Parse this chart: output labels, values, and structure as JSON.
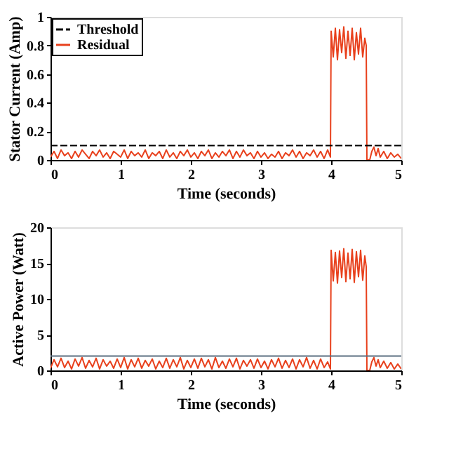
{
  "chart_data": [
    {
      "type": "line",
      "xlabel": "Time (seconds)",
      "ylabel": "Stator Current (Amp)",
      "xlim": [
        0,
        5
      ],
      "ylim": [
        0,
        1
      ],
      "xticks": [
        0,
        1,
        2,
        3,
        4,
        5
      ],
      "yticks": [
        0,
        0.2,
        0.4,
        0.6,
        0.8,
        1
      ],
      "grid": false,
      "legend": "top left",
      "line_style": "solid",
      "marker": "none",
      "ref_lines": [
        {
          "axis": "y",
          "value": 0.1,
          "label": "Threshold",
          "color": "#000000",
          "line_style": "dashed"
        }
      ],
      "series": [
        {
          "name": "Residual",
          "color": "#e8401c",
          "x": [
            0,
            0.05,
            0.1,
            0.15,
            0.2,
            0.25,
            0.3,
            0.35,
            0.4,
            0.45,
            0.5,
            0.55,
            0.6,
            0.65,
            0.7,
            0.75,
            0.8,
            0.85,
            0.9,
            0.95,
            1,
            1.05,
            1.1,
            1.15,
            1.2,
            1.25,
            1.3,
            1.35,
            1.4,
            1.45,
            1.5,
            1.55,
            1.6,
            1.65,
            1.7,
            1.75,
            1.8,
            1.85,
            1.9,
            1.95,
            2,
            2.05,
            2.1,
            2.15,
            2.2,
            2.25,
            2.3,
            2.35,
            2.4,
            2.45,
            2.5,
            2.55,
            2.6,
            2.65,
            2.7,
            2.75,
            2.8,
            2.85,
            2.9,
            2.95,
            3,
            3.05,
            3.1,
            3.15,
            3.2,
            3.25,
            3.3,
            3.35,
            3.4,
            3.45,
            3.5,
            3.55,
            3.6,
            3.65,
            3.7,
            3.75,
            3.8,
            3.85,
            3.9,
            3.95,
            3.99,
            4,
            4.03,
            4.06,
            4.09,
            4.12,
            4.15,
            4.18,
            4.21,
            4.24,
            4.27,
            4.3,
            4.33,
            4.36,
            4.39,
            4.42,
            4.45,
            4.48,
            4.5,
            4.51,
            4.55,
            4.58,
            4.61,
            4.64,
            4.67,
            4.7,
            4.75,
            4.8,
            4.85,
            4.9,
            4.95,
            5
          ],
          "values": [
            0.02,
            0.06,
            0.01,
            0.07,
            0.03,
            0.05,
            0.01,
            0.06,
            0.02,
            0.07,
            0.04,
            0.01,
            0.06,
            0.03,
            0.07,
            0.02,
            0.05,
            0.01,
            0.06,
            0.04,
            0.02,
            0.07,
            0.01,
            0.06,
            0.03,
            0.05,
            0.02,
            0.07,
            0.01,
            0.05,
            0.03,
            0.06,
            0.01,
            0.07,
            0.02,
            0.05,
            0.01,
            0.06,
            0.03,
            0.07,
            0.02,
            0.05,
            0.01,
            0.06,
            0.03,
            0.07,
            0.01,
            0.05,
            0.02,
            0.06,
            0.03,
            0.07,
            0.01,
            0.06,
            0.02,
            0.07,
            0.03,
            0.05,
            0.01,
            0.06,
            0.02,
            0.05,
            0.01,
            0.04,
            0.02,
            0.06,
            0.01,
            0.05,
            0.03,
            0.07,
            0.02,
            0.06,
            0.01,
            0.05,
            0.03,
            0.07,
            0.02,
            0.06,
            0.01,
            0.07,
            0.02,
            0.9,
            0.72,
            0.92,
            0.7,
            0.91,
            0.75,
            0.93,
            0.71,
            0.9,
            0.73,
            0.92,
            0.7,
            0.89,
            0.74,
            0.92,
            0.72,
            0.85,
            0.8,
            0,
            0,
            0.06,
            0.09,
            0.03,
            0.08,
            0.02,
            0.06,
            0.01,
            0.05,
            0.02,
            0.04,
            0.01
          ]
        }
      ]
    },
    {
      "type": "line",
      "xlabel": "Time (seconds)",
      "ylabel": "Active Power (Watt)",
      "xlim": [
        0,
        5
      ],
      "ylim": [
        0,
        20
      ],
      "xticks": [
        0,
        1,
        2,
        3,
        4,
        5
      ],
      "yticks": [
        0,
        5,
        10,
        15,
        20
      ],
      "grid": false,
      "line_style": "solid",
      "marker": "none",
      "ref_lines": [
        {
          "axis": "y",
          "value": 2,
          "color": "#5a6f80",
          "line_style": "solid"
        }
      ],
      "series": [
        {
          "color": "#e8401c",
          "x": [
            0,
            0.05,
            0.1,
            0.15,
            0.2,
            0.25,
            0.3,
            0.35,
            0.4,
            0.45,
            0.5,
            0.55,
            0.6,
            0.65,
            0.7,
            0.75,
            0.8,
            0.85,
            0.9,
            0.95,
            1,
            1.05,
            1.1,
            1.15,
            1.2,
            1.25,
            1.3,
            1.35,
            1.4,
            1.45,
            1.5,
            1.55,
            1.6,
            1.65,
            1.7,
            1.75,
            1.8,
            1.85,
            1.9,
            1.95,
            2,
            2.05,
            2.1,
            2.15,
            2.2,
            2.25,
            2.3,
            2.35,
            2.4,
            2.45,
            2.5,
            2.55,
            2.6,
            2.65,
            2.7,
            2.75,
            2.8,
            2.85,
            2.9,
            2.95,
            3,
            3.05,
            3.1,
            3.15,
            3.2,
            3.25,
            3.3,
            3.35,
            3.4,
            3.45,
            3.5,
            3.55,
            3.6,
            3.65,
            3.7,
            3.75,
            3.8,
            3.85,
            3.9,
            3.95,
            3.99,
            4,
            4.03,
            4.06,
            4.09,
            4.12,
            4.15,
            4.18,
            4.21,
            4.24,
            4.27,
            4.3,
            4.33,
            4.36,
            4.39,
            4.42,
            4.45,
            4.48,
            4.5,
            4.51,
            4.55,
            4.58,
            4.61,
            4.64,
            4.67,
            4.7,
            4.75,
            4.8,
            4.85,
            4.9,
            4.95,
            5
          ],
          "values": [
            0.3,
            1.5,
            0.5,
            1.7,
            0.4,
            1.3,
            0.2,
            1.6,
            0.6,
            1.8,
            0.3,
            1.4,
            0.5,
            1.7,
            0.2,
            1.5,
            0.6,
            1.3,
            0.3,
            1.6,
            0.4,
            1.8,
            0.2,
            1.5,
            0.5,
            1.7,
            0.3,
            1.4,
            0.6,
            1.6,
            0.2,
            1.3,
            0.4,
            1.7,
            0.3,
            1.5,
            0.5,
            1.8,
            0.2,
            1.4,
            0.4,
            1.6,
            0.3,
            1.7,
            0.5,
            1.5,
            0.2,
            1.8,
            0.4,
            1.3,
            0.3,
            1.6,
            0.5,
            1.7,
            0.2,
            1.4,
            0.6,
            1.5,
            0.3,
            1.6,
            0.4,
            1.3,
            0.2,
            1.5,
            0.5,
            1.7,
            0.3,
            1.4,
            0.4,
            1.6,
            0.2,
            1.5,
            0.5,
            1.8,
            0.3,
            1.4,
            0.2,
            1.6,
            0.4,
            1.2,
            0.2,
            16.8,
            12.5,
            16.5,
            12.2,
            16.7,
            13,
            17,
            12.4,
            16.4,
            12.8,
            16.9,
            12.3,
            16.6,
            13.1,
            16.8,
            12.6,
            16,
            14.5,
            0,
            0,
            1.2,
            1.8,
            0.6,
            1.5,
            0.4,
            1.3,
            0.3,
            1.1,
            0.2,
            0.9,
            0.2
          ]
        }
      ]
    }
  ]
}
